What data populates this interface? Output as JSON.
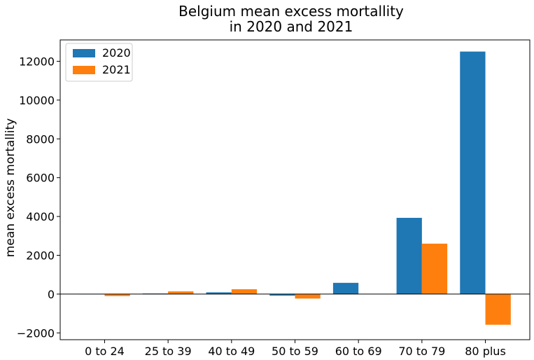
{
  "chart_data": {
    "type": "bar",
    "title": [
      "Belgium mean excess mortallity",
      "in 2020 and 2021"
    ],
    "xlabel": "",
    "ylabel": "mean excess mortallity",
    "categories": [
      "0 to 24",
      "25 to 39",
      "40 to 49",
      "50 to 59",
      "60 to 69",
      "70 to 79",
      "80 plus"
    ],
    "series": [
      {
        "name": "2020",
        "color": "#1f77b4",
        "values": [
          -10,
          30,
          90,
          -80,
          580,
          3930,
          12500
        ]
      },
      {
        "name": "2021",
        "color": "#ff7f0e",
        "values": [
          -100,
          140,
          250,
          -230,
          0,
          2600,
          -1580
        ]
      }
    ],
    "ylim": [
      -2350,
      13100
    ],
    "yticks": [
      -2000,
      0,
      2000,
      4000,
      6000,
      8000,
      10000,
      12000
    ],
    "ytick_labels": [
      "−2000",
      "0",
      "2000",
      "4000",
      "6000",
      "8000",
      "10000",
      "12000"
    ],
    "zero_line": true,
    "grid": false,
    "legend_position": "top-left"
  }
}
